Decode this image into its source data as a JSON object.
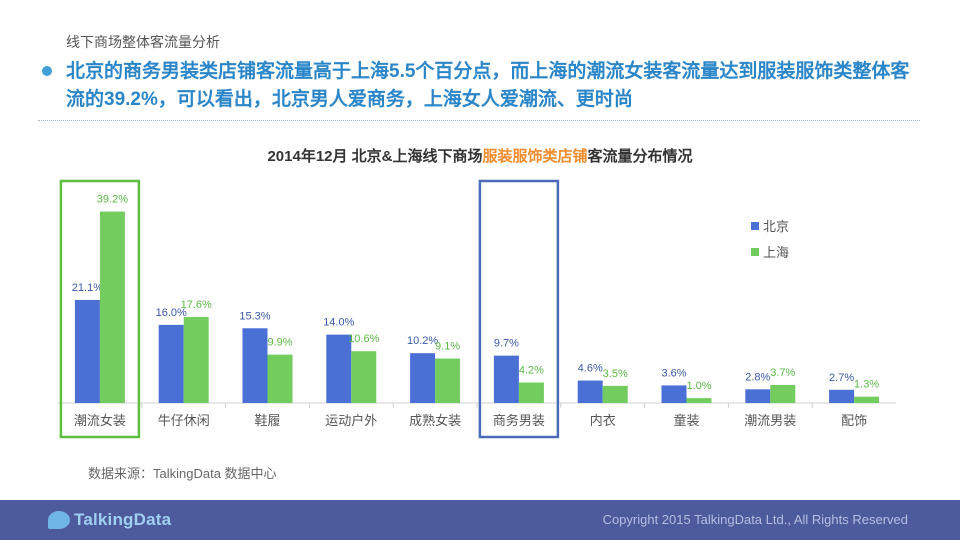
{
  "section_label": "线下商场整体客流量分析",
  "headline": "北京的商务男装类店铺客流量高于上海5.5个百分点，而上海的潮流女装客流量达到服装服饰类整体客流的39.2%，可以看出，北京男人爱商务，上海女人爱潮流、更时尚",
  "chart_data": {
    "type": "bar",
    "title": {
      "prefix": "2014年12月  北京&上海线下商场",
      "highlight": "服装服饰类店铺",
      "suffix": "客流量分布情况"
    },
    "categories": [
      "潮流女装",
      "牛仔休闲",
      "鞋履",
      "运动户外",
      "成熟女装",
      "商务男装",
      "内衣",
      "童装",
      "潮流男装",
      "配饰"
    ],
    "series": [
      {
        "name": "北京",
        "color": "#4a6fd5",
        "label_color": "#3a58a8",
        "values": [
          21.1,
          16.0,
          15.3,
          14.0,
          10.2,
          9.7,
          4.6,
          3.6,
          2.8,
          2.7
        ],
        "labels": [
          "21.1%",
          "16.0%",
          "15.3%",
          "14.0%",
          "10.2%",
          "9.7%",
          "4.6%",
          "3.6%",
          "2.8%",
          "2.7%"
        ]
      },
      {
        "name": "上海",
        "color": "#72cc5e",
        "label_color": "#5aba44",
        "values": [
          39.2,
          17.6,
          9.9,
          10.6,
          9.1,
          4.2,
          3.5,
          1.0,
          3.7,
          1.3
        ],
        "labels": [
          "39.2%",
          "17.6%",
          "9.9%",
          "10.6%",
          "9.1%",
          "4.2%",
          "3.5%",
          "1.0%",
          "3.7%",
          "1.3%"
        ]
      }
    ],
    "ylim": [
      0,
      43
    ],
    "grid": false,
    "legend_position": "right",
    "highlight_boxes": [
      {
        "category": "潮流女装",
        "color": "#5cbf42"
      },
      {
        "category": "商务男装",
        "color": "#4a6cb8"
      }
    ]
  },
  "source": "数据来源：TalkingData 数据中心",
  "footer": {
    "logo": "TalkingData",
    "copyright": "Copyright 2015 TalkingData Ltd., All Rights Reserved"
  }
}
